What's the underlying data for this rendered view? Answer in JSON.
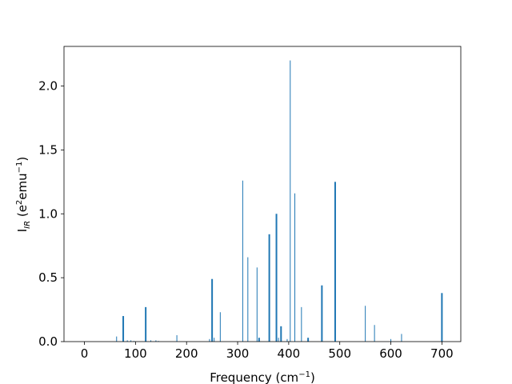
{
  "chart_data": {
    "type": "bar",
    "title": "",
    "xlabel": "Frequency (cm⁻¹)",
    "ylabel": "I_IR (e²emu⁻¹)",
    "ylabel_parts": {
      "base": "I",
      "sub": "IR",
      "rest_open": " (e",
      "sup1": "2",
      "rest_mid": "emu",
      "sup2": "−1",
      "rest_close": ")"
    },
    "xlabel_parts": {
      "text": "Frequency (cm",
      "sup": "−1",
      "close": ")"
    },
    "xlim": [
      -40,
      737
    ],
    "ylim": [
      0,
      2.31
    ],
    "xticks": [
      0,
      100,
      200,
      300,
      400,
      500,
      600,
      700
    ],
    "yticks": [
      0.0,
      0.5,
      1.0,
      1.5,
      2.0
    ],
    "xtick_labels": [
      "0",
      "100",
      "200",
      "300",
      "400",
      "500",
      "600",
      "700"
    ],
    "ytick_labels": [
      "0.0",
      "0.5",
      "1.0",
      "1.5",
      "2.0"
    ],
    "bar_color": "#1f77b4",
    "grid": false,
    "series": [
      {
        "x": [
          63,
          76,
          84,
          91,
          97,
          120,
          130,
          140,
          145,
          181,
          245,
          250,
          254,
          266,
          310,
          320,
          338,
          342,
          362,
          376,
          380,
          385,
          397,
          403,
          412,
          425,
          438,
          465,
          491,
          550,
          568,
          600,
          621,
          700
        ],
        "y": [
          0.04,
          0.2,
          0.01,
          0.01,
          0.005,
          0.27,
          0.01,
          0.01,
          0.005,
          0.05,
          0.02,
          0.49,
          0.03,
          0.23,
          1.26,
          0.66,
          0.58,
          0.03,
          0.84,
          1.0,
          0.03,
          0.12,
          0.02,
          2.2,
          1.16,
          0.27,
          0.03,
          0.44,
          1.25,
          0.28,
          0.13,
          0.02,
          0.06,
          0.38
        ],
        "widths": [
          1,
          2,
          1,
          1,
          1,
          2,
          1,
          1,
          1,
          1,
          1,
          2,
          1,
          1,
          1,
          1,
          1,
          2,
          2,
          2,
          1,
          2,
          1,
          1,
          1,
          1,
          2,
          2,
          2,
          1,
          1,
          1,
          1,
          2
        ]
      }
    ]
  }
}
